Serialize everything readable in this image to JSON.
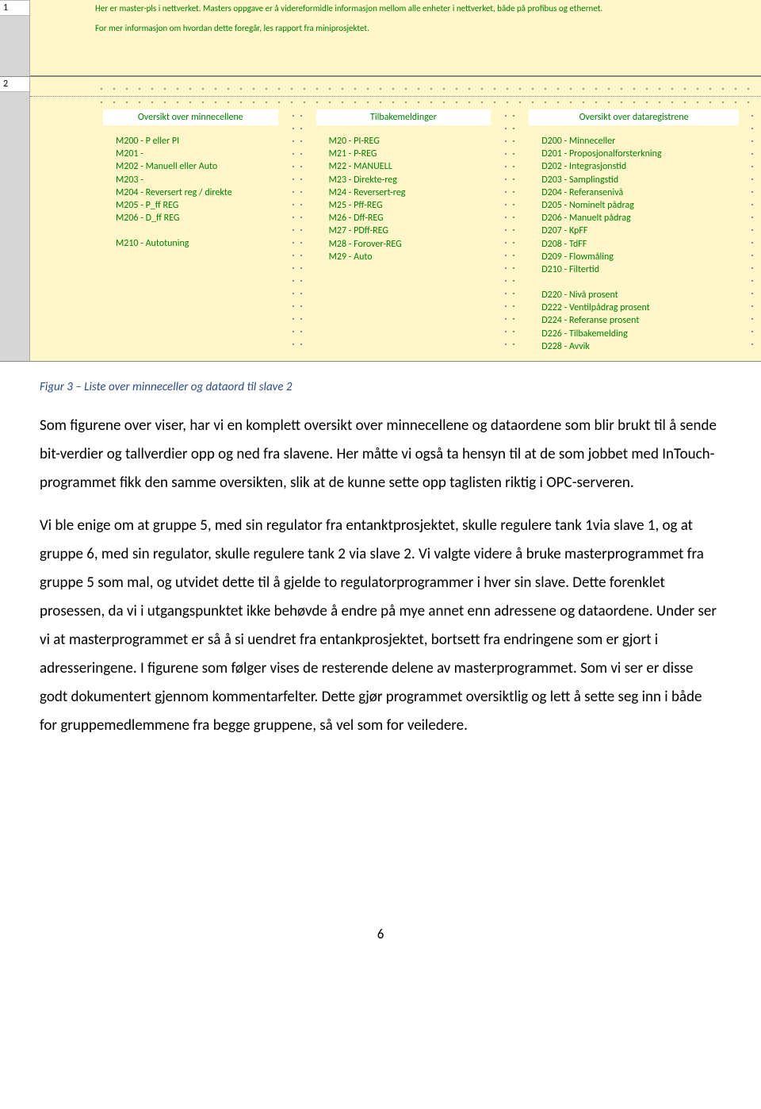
{
  "row_labels": {
    "r1": "1",
    "r2": "2"
  },
  "header_block": {
    "line1": "Her er master-pls i nettverket. Masters oppgave er å videreformidle informasjon mellom alle enheter i nettverket, både på profibus og ethernet.",
    "line2": "For mer informasjon om hvordan dette foregår, les rapport fra miniprosjektet."
  },
  "columns": {
    "col1": {
      "header": "Oversikt over minnecellene",
      "items_a": [
        "M200 - P eller PI",
        "M201 -",
        "M202 - Manuell eller Auto",
        "M203 -",
        "M204 - Reversert reg / direkte",
        "M205 - P_ff REG",
        "M206 - D_ff REG"
      ],
      "items_b": [
        "M210 - Autotuning"
      ]
    },
    "col2": {
      "header": "Tilbakemeldinger",
      "items_a": [
        "M20 - PI-REG",
        "M21 - P-REG",
        "M22 - MANUELL",
        "M23 - Direkte-reg",
        "M24 - Reversert-reg",
        "M25 - Pff-REG",
        "M26 - Dff-REG",
        "M27 - PDff-REG",
        "M28 - Forover-REG",
        "M29 - Auto"
      ]
    },
    "col3": {
      "header": "Oversikt over dataregistrene",
      "items_a": [
        "D200 - Minneceller",
        "D201 - Proposjonalforsterkning",
        "D202 - Integrasjonstid",
        "D203 - Samplingstid",
        "D204 - Referansenivå",
        "D205 - Nominelt pådrag",
        "D206 - Manuelt pådrag",
        "D207 - KpFF",
        "D208 - TdFF",
        "D209 - Flowmåling",
        "D210 - Filtertid"
      ],
      "items_b": [
        "D220 - Nivå prosent",
        "D222 - Ventilpådrag prosent",
        "D224 - Referanse prosent",
        "D226 - Tilbakemelding",
        "D228 - Avvik"
      ]
    }
  },
  "caption": "Figur 3 – Liste over minneceller og dataord til slave 2",
  "paragraph1": "Som figurene over viser, har vi en komplett oversikt over minnecellene og dataordene som blir brukt til å sende bit-verdier og tallverdier opp og ned fra slavene. Her måtte vi også ta hensyn til at de som jobbet med InTouch-programmet fikk den samme oversikten, slik at de kunne sette opp taglisten riktig i OPC-serveren.",
  "paragraph2": "Vi ble enige om at gruppe 5, med sin regulator fra entanktprosjektet, skulle regulere tank 1via slave 1, og at gruppe 6, med sin regulator, skulle regulere tank 2 via slave 2. Vi valgte videre å bruke masterprogrammet fra gruppe 5 som mal, og utvidet dette til å gjelde to regulatorprogrammer i hver sin slave. Dette forenklet prosessen, da vi i utgangspunktet ikke behøvde å endre på mye annet enn adressene og dataordene. Under ser vi at masterprogrammet er så å si uendret fra entankprosjektet, bortsett fra endringene som er gjort i adresseringene. I figurene som følger vises de resterende delene av masterprogrammet. Som vi ser er disse godt dokumentert gjennom kommentarfelter. Dette gjør programmet oversiktlig og lett å sette seg inn i både for gruppemedlemmene fra begge gruppene, så vel som for veiledere.",
  "page_number": "6",
  "colors": {
    "yellow_bg": "#fff6c9",
    "green_text": "#008000",
    "grey_ruler": "#d6d6d6",
    "caption_blue": "#2a4a8a"
  }
}
